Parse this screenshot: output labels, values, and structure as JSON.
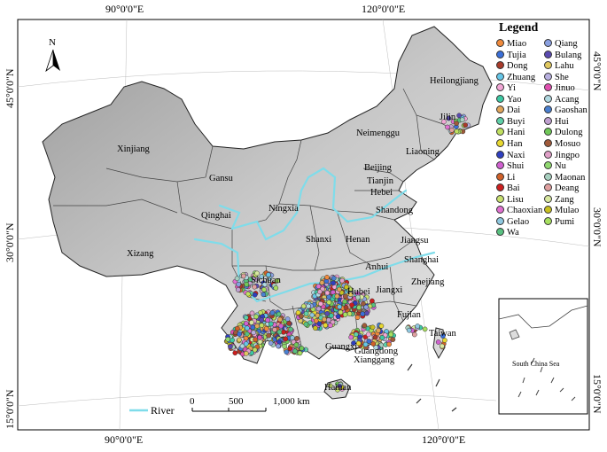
{
  "map": {
    "top_coords": [
      "90°0'0\"E",
      "120°0'0\"E"
    ],
    "bottom_coords": [
      "90°0'0\"E",
      "120°0'0\"E"
    ],
    "left_coords": [
      "45°0'0\"N",
      "30°0'0\"N",
      "15°0'0\"N"
    ],
    "right_coords": [
      "45°0'0\"N",
      "30°0'0\"N",
      "15°0'0\"N"
    ],
    "north_label": "N",
    "provinces": [
      "Xinjiang",
      "Gansu",
      "Qinghai",
      "Xizang",
      "Neimenggu",
      "Heilongjiang",
      "Jilin",
      "Liaoning",
      "Beijing",
      "Tianjin",
      "Hebei",
      "Shandong",
      "Ningxia",
      "Shanxi",
      "Henan",
      "Jiangsu",
      "Anhui",
      "Shanghai",
      "Hubei",
      "Zhejiang",
      "Sichuan",
      "Jiangxi",
      "Fujian",
      "Taiwan",
      "Guangxi",
      "Guangdong",
      "Xianggang",
      "Hainan"
    ],
    "inset_label": "South China Sea",
    "scale_labels": [
      "0",
      "500",
      "1,000 km"
    ],
    "river_label": "River",
    "colors": {
      "river": "#7fdcea",
      "land": "#d0d0d0",
      "outline": "#222222"
    }
  },
  "legend": {
    "title": "Legend",
    "col1": [
      {
        "name": "Miao",
        "color": "#f08a3c"
      },
      {
        "name": "Tujia",
        "color": "#3a6fd8"
      },
      {
        "name": "Dong",
        "color": "#a83a2a"
      },
      {
        "name": "Zhuang",
        "color": "#66c6e8"
      },
      {
        "name": "Yi",
        "color": "#f2a7d6"
      },
      {
        "name": "Yao",
        "color": "#3cc9a3"
      },
      {
        "name": "Dai",
        "color": "#e0a55a"
      },
      {
        "name": "Buyi",
        "color": "#5fd0a8"
      },
      {
        "name": "Hani",
        "color": "#c0e060"
      },
      {
        "name": "Han",
        "color": "#e8d830"
      },
      {
        "name": "Naxi",
        "color": "#2f3fc0"
      },
      {
        "name": "Shui",
        "color": "#d060d0"
      },
      {
        "name": "Li",
        "color": "#d06028"
      },
      {
        "name": "Bai",
        "color": "#cc1f1f"
      },
      {
        "name": "Lisu",
        "color": "#c8e070"
      },
      {
        "name": "Chaoxian",
        "color": "#e070d0"
      },
      {
        "name": "Gelao",
        "color": "#8fc8e0"
      },
      {
        "name": "Wa",
        "color": "#58c080"
      }
    ],
    "col2": [
      {
        "name": "Qiang",
        "color": "#8aa0e0"
      },
      {
        "name": "Bulang",
        "color": "#5a4ab0"
      },
      {
        "name": "Lahu",
        "color": "#e0c860"
      },
      {
        "name": "She",
        "color": "#b8b0e0"
      },
      {
        "name": "Jinuo",
        "color": "#e050b0"
      },
      {
        "name": "Acang",
        "color": "#b0d8e0"
      },
      {
        "name": "Gaoshan",
        "color": "#4a80d0"
      },
      {
        "name": "Hui",
        "color": "#c0a0d0"
      },
      {
        "name": "Dulong",
        "color": "#70c858"
      },
      {
        "name": "Mosuo",
        "color": "#a05a3a"
      },
      {
        "name": "Jingpo",
        "color": "#e0a0c8"
      },
      {
        "name": "Nu",
        "color": "#90d870"
      },
      {
        "name": "Maonan",
        "color": "#a8d0c0"
      },
      {
        "name": "Deang",
        "color": "#e0a0a0"
      },
      {
        "name": "Zang",
        "color": "#d8e8a0"
      },
      {
        "name": "Mulao",
        "color": "#c8c020"
      },
      {
        "name": "Pumi",
        "color": "#a8e060"
      }
    ]
  }
}
